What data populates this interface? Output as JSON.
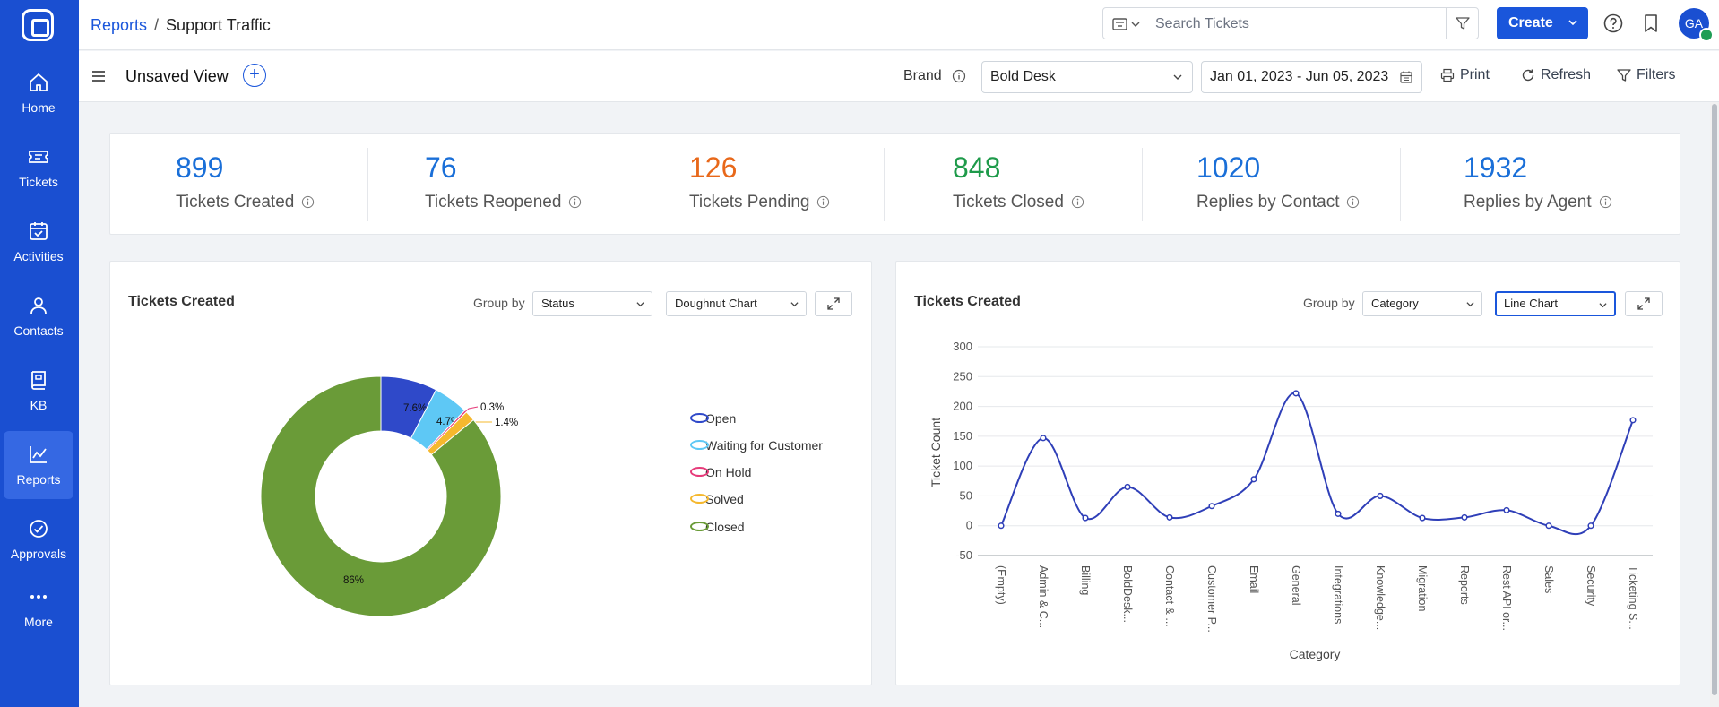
{
  "sidebar": {
    "items": [
      {
        "label": "Home",
        "icon": "home-icon"
      },
      {
        "label": "Tickets",
        "icon": "ticket-icon"
      },
      {
        "label": "Activities",
        "icon": "calendar-check-icon"
      },
      {
        "label": "Contacts",
        "icon": "person-icon"
      },
      {
        "label": "KB",
        "icon": "book-icon"
      },
      {
        "label": "Reports",
        "icon": "chart-icon"
      },
      {
        "label": "Approvals",
        "icon": "check-circle-icon"
      },
      {
        "label": "More",
        "icon": "more-dots-icon"
      }
    ]
  },
  "header": {
    "breadcrumb_root": "Reports",
    "breadcrumb_sep": "/",
    "breadcrumb_current": "Support Traffic",
    "search_placeholder": "Search Tickets",
    "create_label": "Create",
    "avatar_initials": "GA"
  },
  "filterbar": {
    "view_title": "Unsaved View",
    "add_symbol": "+",
    "brand_label": "Brand",
    "brand_value": "Bold Desk",
    "date_range": "Jan 01, 2023 - Jun 05, 2023",
    "print_label": "Print",
    "refresh_label": "Refresh",
    "filters_label": "Filters"
  },
  "stats": [
    {
      "value": "899",
      "label": "Tickets Created",
      "color": "#1a6fd8"
    },
    {
      "value": "76",
      "label": "Tickets Reopened",
      "color": "#1a6fd8"
    },
    {
      "value": "126",
      "label": "Tickets Pending",
      "color": "#e8681a"
    },
    {
      "value": "848",
      "label": "Tickets Closed",
      "color": "#1e9a4a"
    },
    {
      "value": "1020",
      "label": "Replies by Contact",
      "color": "#1a6fd8"
    },
    {
      "value": "1932",
      "label": "Replies by Agent",
      "color": "#1a6fd8"
    }
  ],
  "left_card": {
    "title": "Tickets Created",
    "groupby_label": "Group by",
    "groupby_value": "Status",
    "chart_type_value": "Doughnut Chart"
  },
  "right_card": {
    "title": "Tickets Created",
    "groupby_label": "Group by",
    "groupby_value": "Category",
    "chart_type_value": "Line Chart"
  },
  "chart_data": [
    {
      "type": "pie",
      "variant": "doughnut",
      "title": "",
      "series": [
        {
          "name": "Open",
          "value": 7.6,
          "label": "7.6%",
          "color": "#2f49c9"
        },
        {
          "name": "Waiting for Customer",
          "value": 4.7,
          "label": "4.7%",
          "color": "#5ec8f5"
        },
        {
          "name": "On Hold",
          "value": 0.3,
          "label": "0.3%",
          "color": "#e63b7a"
        },
        {
          "name": "Solved",
          "value": 1.4,
          "label": "1.4%",
          "color": "#f5b82e"
        },
        {
          "name": "Closed",
          "value": 86,
          "label": "86%",
          "color": "#6a9b38"
        }
      ],
      "legend_position": "right"
    },
    {
      "type": "line",
      "title": "",
      "xlabel": "Category",
      "ylabel": "Ticket Count",
      "ylim": [
        -50,
        300
      ],
      "yticks": [
        -50,
        0,
        50,
        100,
        150,
        200,
        250,
        300
      ],
      "grid": true,
      "categories": [
        "(Empty)",
        "Admin & C...",
        "Billing",
        "BoldDesk...",
        "Contact & ...",
        "Customer P...",
        "Email",
        "General",
        "Integrations",
        "Knowledge...",
        "Migration",
        "Reports",
        "Rest API or...",
        "Sales",
        "Security",
        "Ticketing S..."
      ],
      "series": [
        {
          "name": "",
          "color": "#2f3fb8",
          "values": [
            0,
            147,
            13,
            65,
            14,
            33,
            78,
            222,
            20,
            50,
            13,
            14,
            26,
            0,
            0,
            177
          ]
        }
      ]
    }
  ]
}
